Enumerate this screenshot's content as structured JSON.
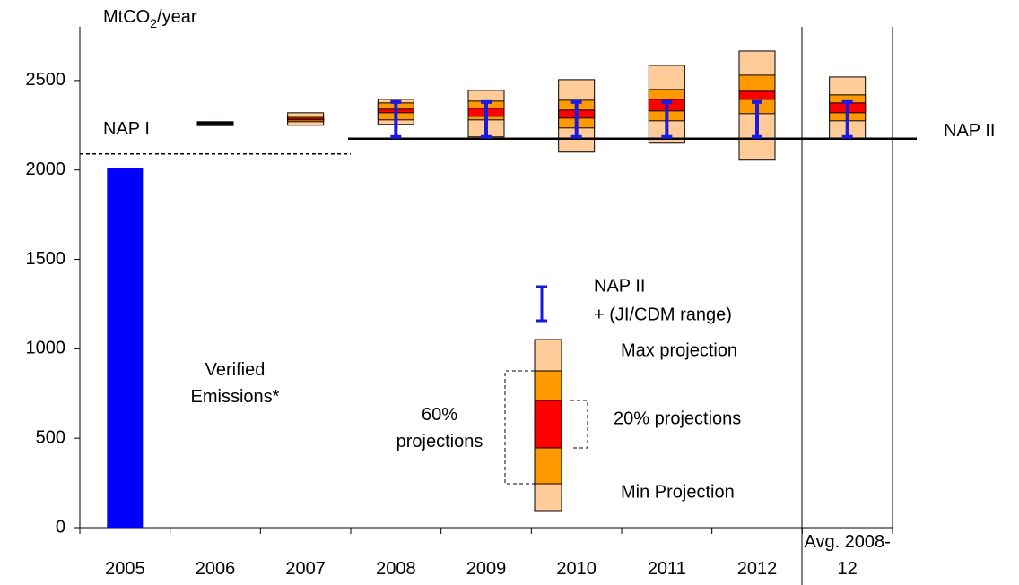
{
  "chart_data": {
    "type": "bar",
    "y_label": [
      "MtCO",
      "2",
      "/year"
    ],
    "categories": [
      "2005",
      "2006",
      "2007",
      "2008",
      "2009",
      "2010",
      "2011",
      "2012",
      "Avg. 2008-12"
    ],
    "ylim": [
      0,
      2800
    ],
    "yticks": [
      0,
      500,
      1000,
      1500,
      2000,
      2500
    ],
    "verified": {
      "label": "Verified Emissions*",
      "color": "#0000ff",
      "values": [
        2010,
        null,
        null,
        null,
        null,
        null,
        null,
        null,
        null
      ]
    },
    "projections": {
      "colors": {
        "outer": "#ffcc99",
        "middle": "#ff9900",
        "inner": "#ff0000"
      },
      "max": [
        null,
        2270,
        2320,
        2395,
        2445,
        2505,
        2585,
        2665,
        2520
      ],
      "high60": [
        null,
        2266,
        2300,
        2375,
        2385,
        2390,
        2450,
        2530,
        2420
      ],
      "high20": [
        null,
        2262,
        2290,
        2340,
        2345,
        2335,
        2395,
        2440,
        2375
      ],
      "low20": [
        null,
        2257,
        2280,
        2320,
        2300,
        2290,
        2330,
        2395,
        2320
      ],
      "low60": [
        null,
        2252,
        2270,
        2280,
        2280,
        2235,
        2275,
        2315,
        2275
      ],
      "min": [
        null,
        2248,
        2250,
        2255,
        2185,
        2100,
        2150,
        2055,
        2175
      ]
    },
    "nap1": {
      "label": "NAP I",
      "value": 2090
    },
    "nap2": {
      "label": "NAP II",
      "value": 2175,
      "range_label": "+ (JI/CDM range)",
      "color": "#1a1ae0",
      "low": [
        null,
        null,
        null,
        2185,
        2185,
        2185,
        2185,
        2185,
        2185
      ],
      "high": [
        null,
        null,
        null,
        2380,
        2380,
        2380,
        2380,
        2380,
        2380
      ]
    },
    "legend": {
      "max": "Max projection",
      "inner": "20% projections",
      "middle": "60% projections",
      "min": "Min Projection"
    }
  }
}
